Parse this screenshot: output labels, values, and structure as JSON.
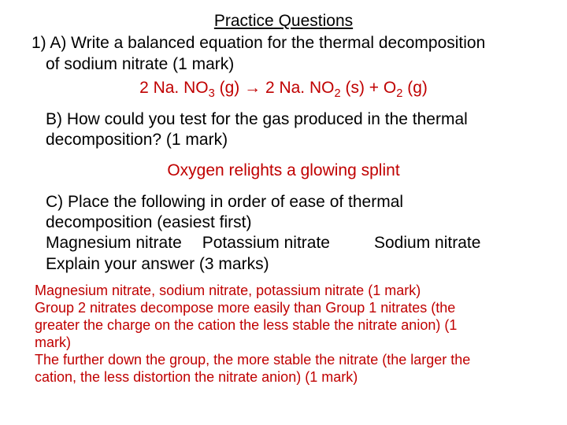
{
  "title": "Practice Questions",
  "q1a_line1": "1) A) Write a balanced equation for the thermal decomposition",
  "q1a_line2": "of sodium nitrate (1 mark)",
  "eq": {
    "p1": "2 Na. NO",
    "s1": "3",
    "p2": " (g) → 2 Na. NO",
    "s2": "2",
    "p3": " (s) + O",
    "s3": "2",
    "p4": " (g)"
  },
  "q1b_line1": "B) How could you test for the gas produced in the thermal",
  "q1b_line2": "decomposition? (1 mark)",
  "ans_b": "Oxygen relights a glowing splint",
  "q1c_line1": "C) Place the following in order of ease of thermal",
  "q1c_line2": "decomposition (easiest first)",
  "q1c_c1": "Magnesium nitrate",
  "q1c_c2": "Potassium nitrate",
  "q1c_c3": "Sodium nitrate",
  "q1c_line4": "Explain your answer (3 marks)",
  "ans_c_l1": "Magnesium nitrate, sodium nitrate, potassium nitrate (1 mark)",
  "ans_c_l2": "Group 2 nitrates decompose more easily than Group 1 nitrates (the",
  "ans_c_l3": "greater the charge on the cation the less stable the nitrate anion) (1",
  "ans_c_l4": "mark)",
  "ans_c_l5": "The further down the group, the more stable the nitrate (the larger the",
  "ans_c_l6": "cation, the less distortion the nitrate anion) (1 mark)",
  "colors": {
    "answer": "#c00000",
    "text": "#000000",
    "background": "#ffffff"
  }
}
